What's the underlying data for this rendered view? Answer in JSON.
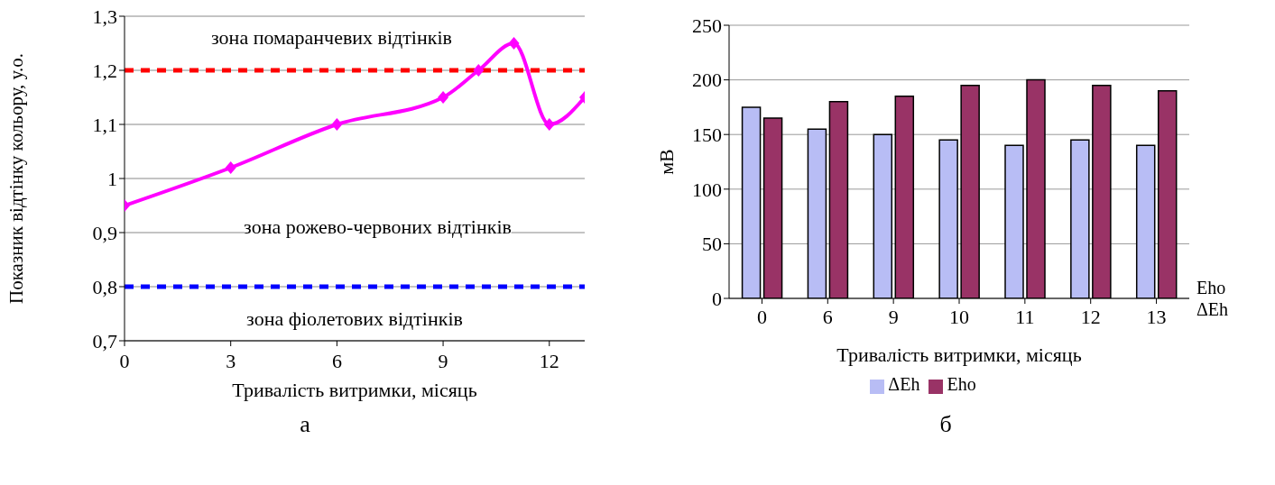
{
  "chart_data": [
    {
      "type": "line",
      "xlabel": "Тривалість витримки, місяць",
      "ylabel": "Показник відтінку кольору, у.о.",
      "x": [
        0,
        3,
        6,
        9,
        10,
        11,
        12,
        13
      ],
      "series": [
        {
          "color": "#ff00ff",
          "values": [
            0.95,
            1.02,
            1.1,
            1.15,
            1.2,
            1.25,
            1.1,
            1.15
          ]
        }
      ],
      "xlim": [
        0,
        13
      ],
      "xticks": [
        0,
        3,
        6,
        9,
        12
      ],
      "ylim": [
        0.7,
        1.3
      ],
      "yticks": [
        {
          "value": 0.7,
          "label": "0,7"
        },
        {
          "value": 0.8,
          "label": "0,8"
        },
        {
          "value": 0.9,
          "label": "0,9"
        },
        {
          "value": 1,
          "label": "1"
        },
        {
          "value": 1.1,
          "label": "1,1"
        },
        {
          "value": 1.2,
          "label": "1,2"
        },
        {
          "value": 1.3,
          "label": "1,3"
        }
      ],
      "ref_lines": [
        {
          "axis": "y",
          "value": 1.2,
          "color": "#ff0000",
          "line_style": "dashed"
        },
        {
          "axis": "y",
          "value": 0.8,
          "color": "#0000ff",
          "line_style": "dashed"
        }
      ],
      "annotations": [
        "зона помаранчевих відтінків",
        "зона рожево-червоних відтінків",
        "зона фіолетових відтінків",
        "а"
      ],
      "grid": "y",
      "marker": "diamond",
      "legend": false
    },
    {
      "type": "bar",
      "xlabel": "Тривалість витримки, місяць",
      "ylabel": "мВ",
      "categories": [
        "0",
        "6",
        "9",
        "10",
        "11",
        "12",
        "13"
      ],
      "series": [
        {
          "name": "ΔEh",
          "color": "#b8bdf5",
          "values": [
            175,
            155,
            150,
            145,
            140,
            145,
            140
          ]
        },
        {
          "name": "Eho",
          "color": "#993366",
          "values": [
            165,
            180,
            185,
            195,
            200,
            195,
            190
          ]
        }
      ],
      "ylim": [
        0,
        250
      ],
      "yticks": [
        0,
        50,
        100,
        150,
        200,
        250
      ],
      "annotations": [
        "Eho",
        "ΔEh",
        "б"
      ],
      "grid": "y",
      "legend": "bottom"
    }
  ]
}
